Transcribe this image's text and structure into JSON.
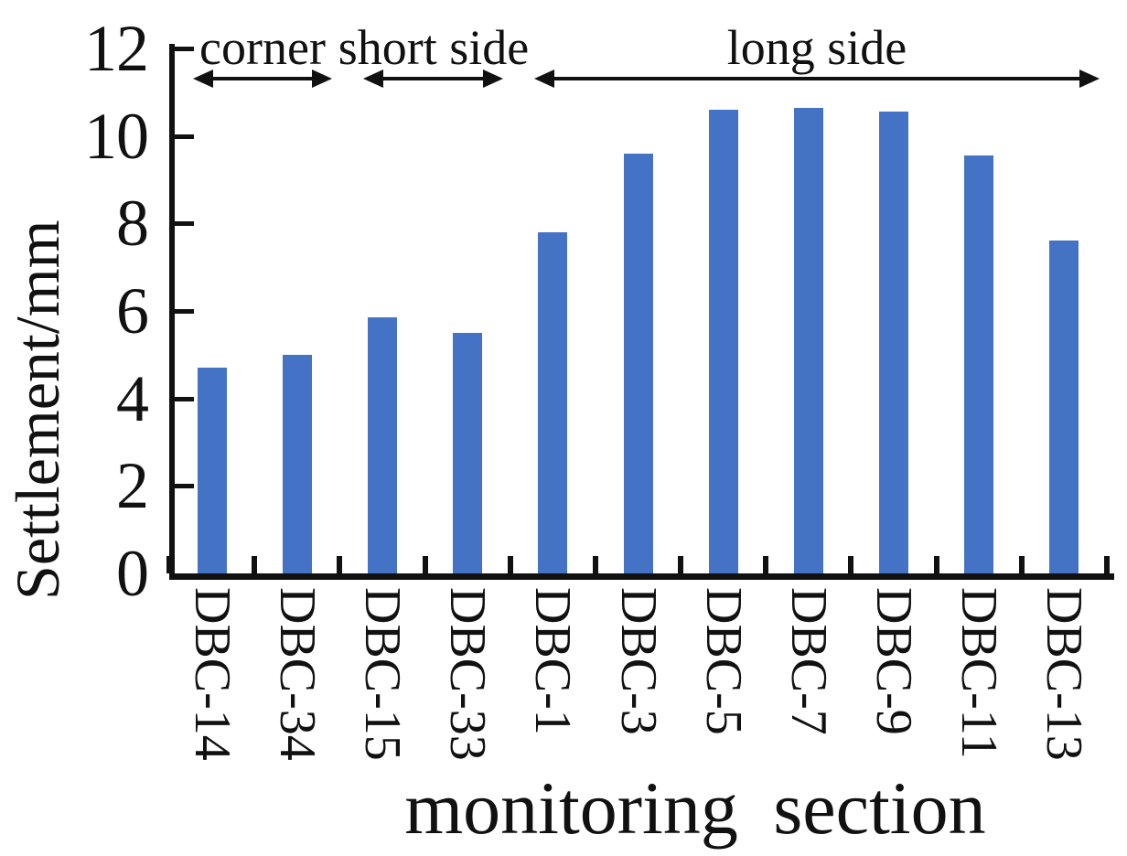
{
  "figure": {
    "background": "#ffffff",
    "text_color": "#111111"
  },
  "chart_data": {
    "type": "bar",
    "title": "",
    "xlabel": "monitoring section",
    "ylabel": "Settlement/mm",
    "categories": [
      "DBC-14",
      "DBC-34",
      "DBC-15",
      "DBC-33",
      "DBC-1",
      "DBC-3",
      "DBC-5",
      "DBC-7",
      "DBC-9",
      "DBC-11",
      "DBC-13"
    ],
    "values": [
      4.7,
      5.0,
      5.85,
      5.5,
      7.8,
      9.6,
      10.6,
      10.65,
      10.55,
      9.55,
      7.6
    ],
    "ylim": [
      0,
      12
    ],
    "yticks": [
      0,
      2,
      4,
      6,
      8,
      10,
      12
    ],
    "bar_color": "#4472C4",
    "axis_color": "#111111",
    "grid": false,
    "legend": null,
    "tick_style": "inward",
    "annotations": [
      {
        "label": "corner",
        "from_category": "DBC-14",
        "to_category": "DBC-34",
        "from_index": 0,
        "to_index": 1
      },
      {
        "label": "short side",
        "from_category": "DBC-15",
        "to_category": "DBC-33",
        "from_index": 2,
        "to_index": 3
      },
      {
        "label": "long side",
        "from_category": "DBC-1",
        "to_category": "DBC-13",
        "from_index": 4,
        "to_index": 10
      }
    ]
  }
}
